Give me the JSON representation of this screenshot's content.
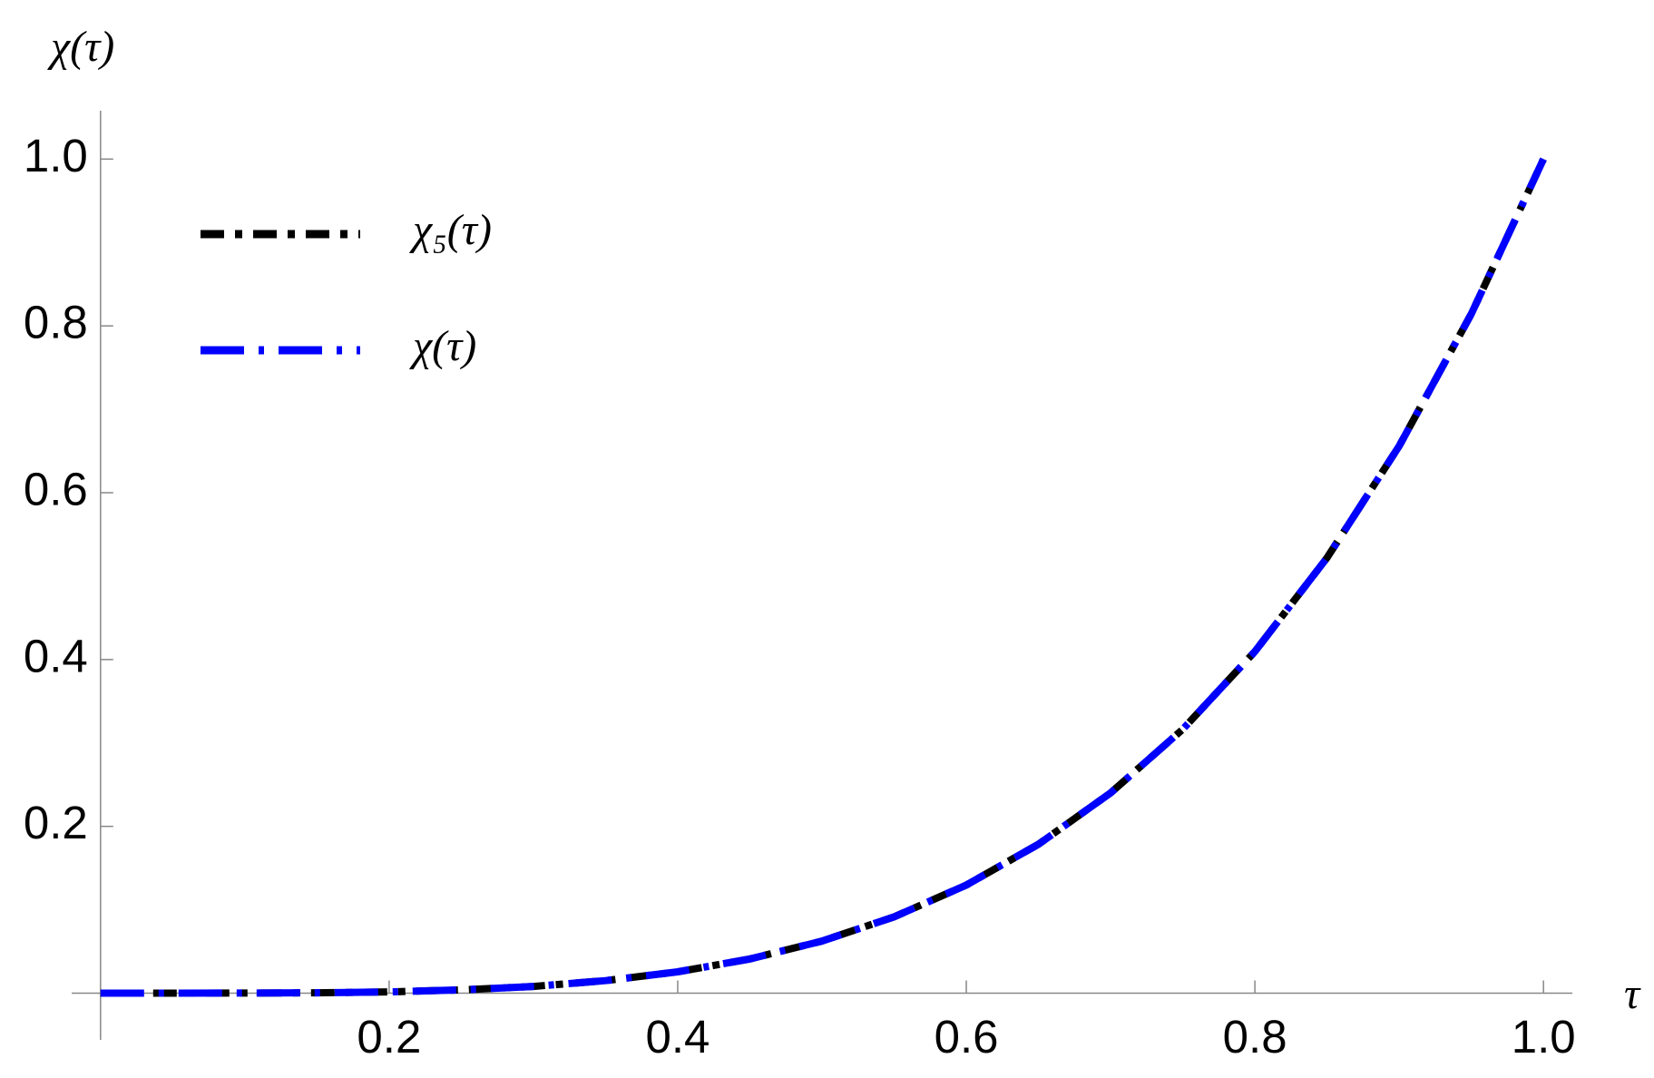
{
  "chart_data": {
    "type": "line",
    "y_label": "χ(τ)",
    "x_label": "τ",
    "x": [
      0,
      0.05,
      0.1,
      0.15,
      0.2,
      0.25,
      0.3,
      0.35,
      0.4,
      0.45,
      0.5,
      0.55,
      0.6,
      0.65,
      0.7,
      0.75,
      0.8,
      0.85,
      0.9,
      0.95,
      1.0
    ],
    "series": [
      {
        "name": "χ₅(τ)",
        "color": "#000000",
        "values": [
          0,
          0,
          0.0001,
          0.0005,
          0.0016,
          0.0039,
          0.0081,
          0.015,
          0.0256,
          0.041,
          0.0625,
          0.0915,
          0.1296,
          0.1785,
          0.2401,
          0.3164,
          0.4096,
          0.522,
          0.6561,
          0.8145,
          1
        ]
      },
      {
        "name": "χ(τ)",
        "color": "#0000ff",
        "values": [
          0,
          0,
          0.0001,
          0.0005,
          0.0016,
          0.0039,
          0.0081,
          0.015,
          0.0256,
          0.041,
          0.0625,
          0.0915,
          0.1296,
          0.1785,
          0.2401,
          0.3164,
          0.4096,
          0.522,
          0.6561,
          0.8145,
          1
        ]
      }
    ],
    "xlim": [
      -0.02,
      1.02
    ],
    "ylim": [
      -0.056,
      1.058
    ],
    "xticks": [
      0.2,
      0.4,
      0.6,
      0.8,
      {
        "value": 1,
        "label": "1.0"
      }
    ],
    "yticks": [
      0.2,
      0.4,
      0.6,
      0.8,
      {
        "value": 1,
        "label": "1.0"
      }
    ],
    "legend": "top-left"
  }
}
